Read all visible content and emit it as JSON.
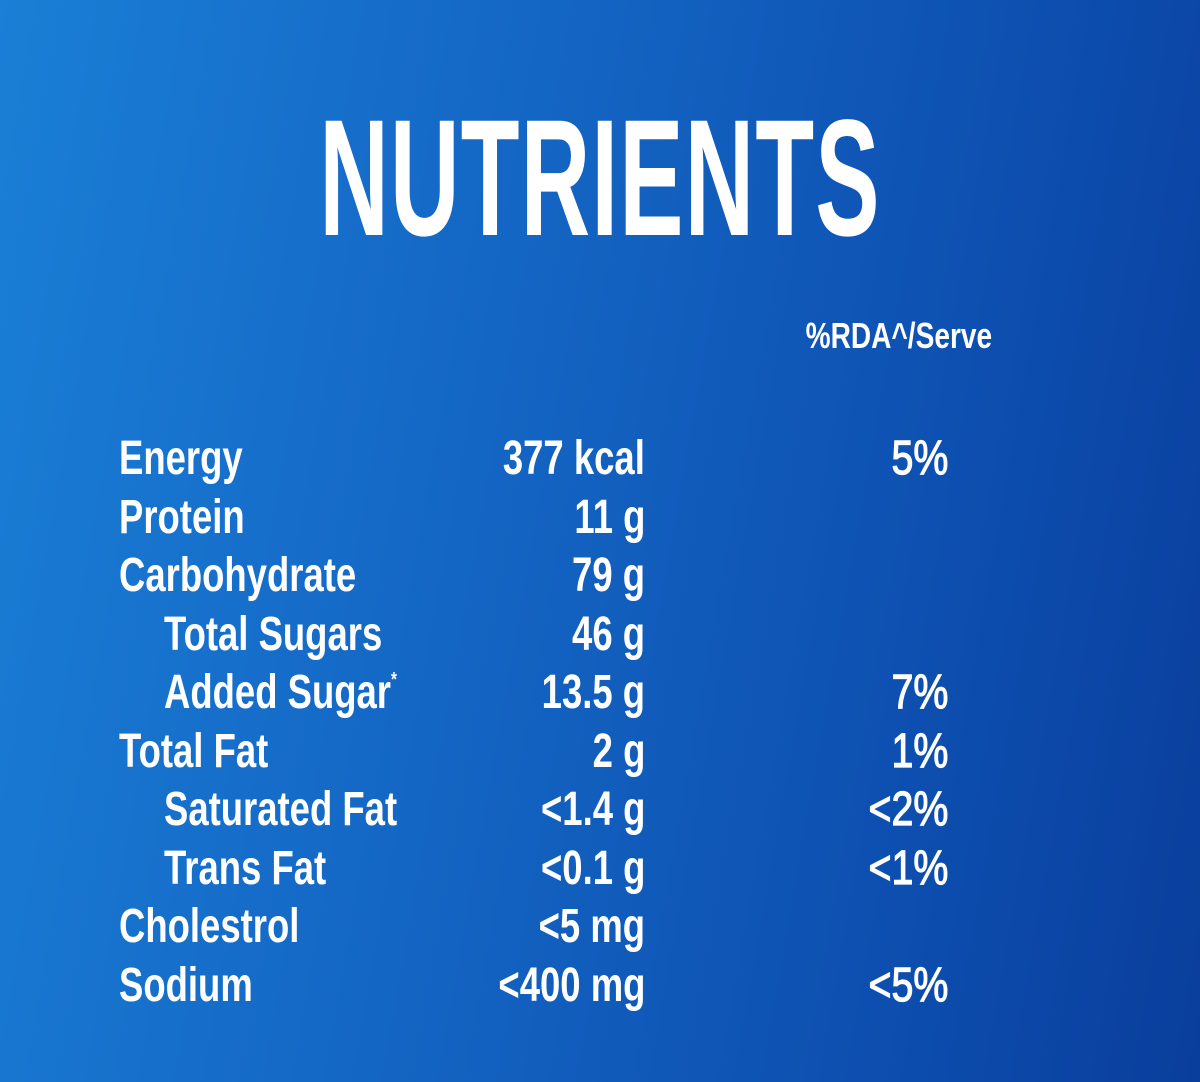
{
  "title": "NUTRIENTS",
  "table": {
    "header": "%RDA^/Serve",
    "rows": [
      {
        "name": "Energy",
        "amount": "377 kcal",
        "rda": "5%"
      },
      {
        "name": "Protein",
        "amount": "11 g"
      },
      {
        "name": "Carbohydrate",
        "amount": "79 g",
        "subrows": [
          {
            "name": "Total Sugars",
            "amount": "46 g"
          },
          {
            "name": "Added Sugar",
            "note_mark": "*",
            "amount": "13.5 g",
            "rda": "7%"
          }
        ]
      },
      {
        "name": "Total Fat",
        "amount": "2 g",
        "rda": "1%",
        "subrows": [
          {
            "name": "Saturated Fat",
            "amount": "<1.4 g",
            "rda": "<2%"
          },
          {
            "name": "Trans Fat",
            "amount": "<0.1 g",
            "rda": "<1%"
          }
        ]
      },
      {
        "name": "Cholestrol",
        "amount": "<5 mg"
      },
      {
        "name": "Sodium",
        "amount": "<400 mg",
        "rda": "<5%"
      }
    ]
  }
}
